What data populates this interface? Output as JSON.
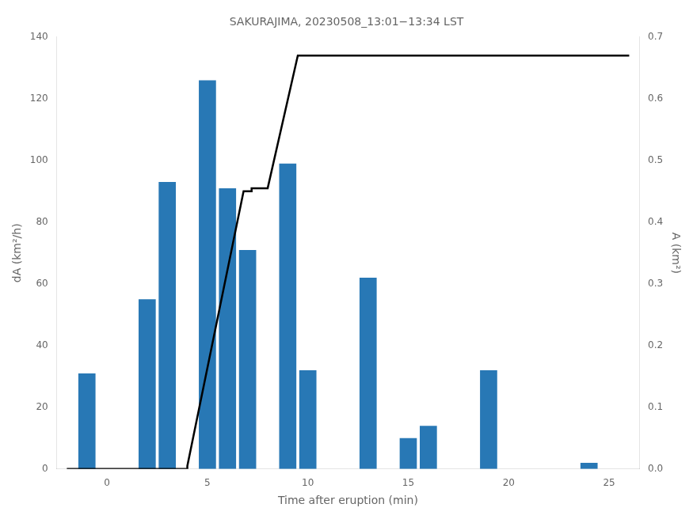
{
  "chart_data": {
    "type": "bar",
    "title": "SAKURAJIMA, 20230508_13:01−13:34 LST",
    "xlabel": "Time after eruption (min)",
    "ylabel": "dA (km²/h)",
    "y2label": "A (km²)",
    "series": [
      {
        "type": "bar",
        "color": "#2878b5",
        "x": [
          -1,
          2,
          3,
          5,
          6,
          7,
          9,
          10,
          13,
          15,
          16,
          19,
          24
        ],
        "values": [
          31,
          55,
          93,
          126,
          91,
          71,
          99,
          32,
          62,
          10,
          14,
          32,
          2
        ]
      },
      {
        "type": "line",
        "axis": "y2",
        "color": "#000000",
        "x": [
          -2,
          4.0,
          4.0,
          6.8,
          7.2,
          7.2,
          8.0,
          9.5,
          9.5,
          26
        ],
        "values": [
          0.0,
          0.0,
          0.005,
          0.45,
          0.45,
          0.455,
          0.455,
          0.67,
          0.67,
          0.67
        ]
      }
    ],
    "xlim": [
      -2.5,
      26.5
    ],
    "xticks": [
      0,
      5,
      10,
      15,
      20,
      25
    ],
    "ylim": [
      0,
      140
    ],
    "yticks": [
      0,
      20,
      40,
      60,
      80,
      100,
      120,
      140
    ],
    "y2lim": [
      0,
      0.7
    ],
    "y2ticks": [
      {
        "value": 0.0,
        "label": "0.0"
      },
      0.1,
      0.2,
      0.3,
      0.4,
      0.5,
      0.6,
      0.7
    ],
    "grid": false
  }
}
